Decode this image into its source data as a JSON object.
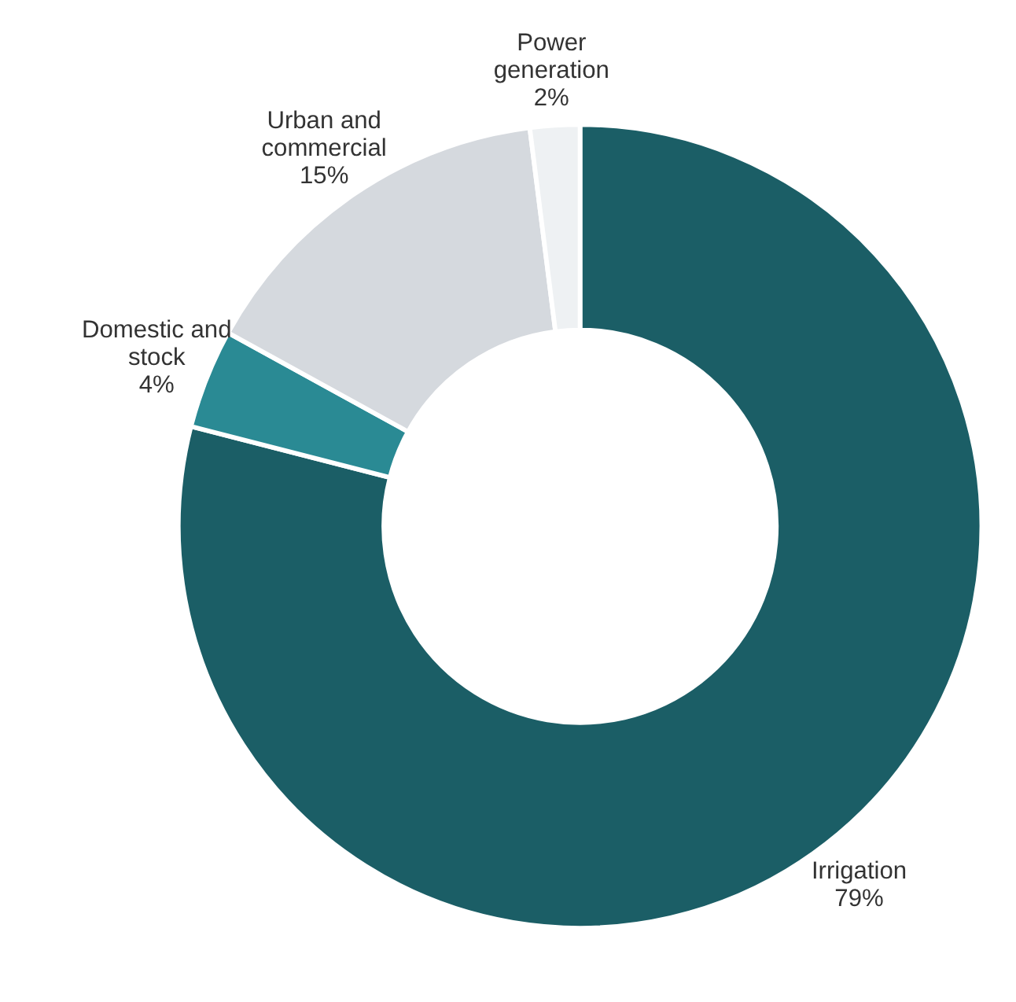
{
  "chart_data": {
    "type": "donut",
    "categories": [
      "Irrigation",
      "Domestic and stock",
      "Urban and commercial",
      "Power generation"
    ],
    "values": [
      79,
      4,
      15,
      2
    ],
    "colors": [
      "#1b5e66",
      "#2a8a94",
      "#d5d9de",
      "#eef1f3"
    ],
    "value_labels": [
      "79%",
      "4%",
      "15%",
      "2%"
    ]
  }
}
